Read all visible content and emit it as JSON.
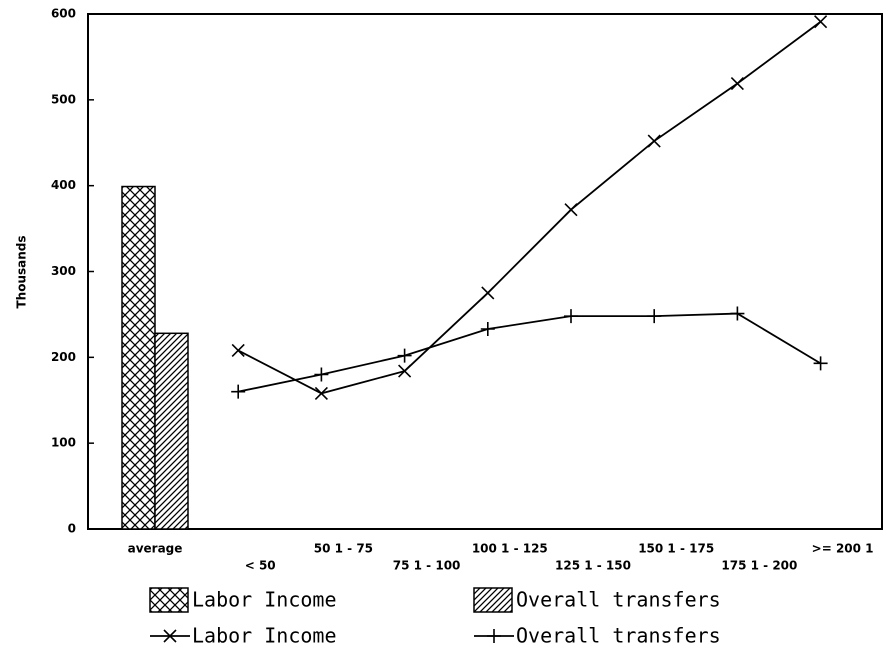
{
  "chart_data": {
    "type": "combo",
    "ylabel": "Thousands",
    "categories": [
      "average",
      "< 50",
      "50 1 - 75",
      "75 1 - 100",
      "100 1 - 125",
      "125 1 - 150",
      "150 1 - 175",
      "175 1 - 200",
      ">= 200 1"
    ],
    "series": [
      {
        "name": "Labor Income",
        "type": "bar",
        "pattern": "crosshatch",
        "color": "#000000",
        "values": [
          399,
          null,
          null,
          null,
          null,
          null,
          null,
          null,
          null
        ]
      },
      {
        "name": "Overall transfers",
        "type": "bar",
        "pattern": "diagonal",
        "color": "#000000",
        "values": [
          228,
          null,
          null,
          null,
          null,
          null,
          null,
          null,
          null
        ]
      },
      {
        "name": "Labor Income",
        "type": "line",
        "marker": "x",
        "color": "#000000",
        "values": [
          null,
          208,
          158,
          184,
          275,
          372,
          452,
          519,
          591
        ]
      },
      {
        "name": "Overall transfers",
        "type": "line",
        "marker": "+",
        "color": "#000000",
        "values": [
          null,
          160,
          180,
          202,
          233,
          248,
          248,
          251,
          193
        ]
      }
    ],
    "ylim": [
      0,
      600
    ],
    "yticks": [
      0,
      100,
      200,
      300,
      400,
      500,
      600
    ],
    "grid": false,
    "legend": "bottom"
  }
}
